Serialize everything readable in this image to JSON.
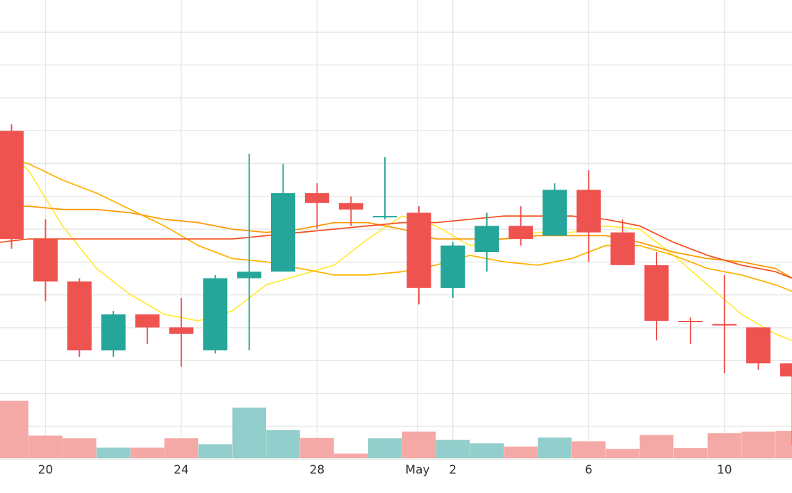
{
  "chart_data": {
    "type": "candlestick",
    "x_ticks": [
      {
        "label": "20",
        "day": 20
      },
      {
        "label": "24",
        "day": 24
      },
      {
        "label": "28",
        "day": 28
      },
      {
        "label": "May",
        "day": 30.96
      },
      {
        "label": "2",
        "day": 32
      },
      {
        "label": "6",
        "day": 36
      },
      {
        "label": "10",
        "day": 40
      }
    ],
    "x_range": [
      18.66,
      41.99
    ],
    "grid": true,
    "colors": {
      "up": "#26a69a",
      "down": "#ef5350",
      "up_volume": "#92cecb",
      "down_volume": "#f5a9a6",
      "grid": "#e6e6e6",
      "ma_lines": [
        "#ffeb3b",
        "#ffb300",
        "#ff9800",
        "#f4511e"
      ]
    },
    "candles": [
      {
        "day": 19,
        "open": 435,
        "high": 437,
        "low": 399,
        "close": 402,
        "dir": "down"
      },
      {
        "day": 20,
        "open": 402,
        "high": 408,
        "low": 383,
        "close": 389,
        "dir": "down"
      },
      {
        "day": 21,
        "open": 389,
        "high": 390,
        "low": 366,
        "close": 368,
        "dir": "down"
      },
      {
        "day": 22,
        "open": 368,
        "high": 380,
        "low": 366,
        "close": 379,
        "dir": "up"
      },
      {
        "day": 23,
        "open": 379,
        "high": 379,
        "low": 370,
        "close": 375,
        "dir": "down"
      },
      {
        "day": 24,
        "open": 375,
        "high": 384,
        "low": 363,
        "close": 373,
        "dir": "down"
      },
      {
        "day": 25,
        "open": 368,
        "high": 391,
        "low": 367,
        "close": 390,
        "dir": "up"
      },
      {
        "day": 26,
        "open": 390,
        "high": 428,
        "low": 368,
        "close": 392,
        "dir": "up"
      },
      {
        "day": 27,
        "open": 392,
        "high": 425,
        "low": 392,
        "close": 416,
        "dir": "up"
      },
      {
        "day": 28,
        "open": 416,
        "high": 419,
        "low": 405,
        "close": 413,
        "dir": "down"
      },
      {
        "day": 29,
        "open": 413,
        "high": 415,
        "low": 406,
        "close": 411,
        "dir": "down"
      },
      {
        "day": 30,
        "open": 409,
        "high": 427,
        "low": 408,
        "close": 409,
        "dir": "up"
      },
      {
        "day": 31,
        "open": 410,
        "high": 412,
        "low": 382,
        "close": 387,
        "dir": "down"
      },
      {
        "day": 32,
        "open": 387,
        "high": 401,
        "low": 384,
        "close": 400,
        "dir": "up"
      },
      {
        "day": 33,
        "open": 398,
        "high": 410,
        "low": 392,
        "close": 406,
        "dir": "up"
      },
      {
        "day": 34,
        "open": 406,
        "high": 412,
        "low": 400,
        "close": 402,
        "dir": "down"
      },
      {
        "day": 35,
        "open": 403,
        "high": 419,
        "low": 403,
        "close": 417,
        "dir": "up"
      },
      {
        "day": 36,
        "open": 417,
        "high": 423,
        "low": 395,
        "close": 404,
        "dir": "down"
      },
      {
        "day": 37,
        "open": 404,
        "high": 408,
        "low": 394,
        "close": 394,
        "dir": "down"
      },
      {
        "day": 38,
        "open": 394,
        "high": 398,
        "low": 371,
        "close": 377,
        "dir": "down"
      },
      {
        "day": 39,
        "open": 377,
        "high": 378,
        "low": 370,
        "close": 377,
        "dir": "down"
      },
      {
        "day": 40,
        "open": 376,
        "high": 391,
        "low": 361,
        "close": 376,
        "dir": "down"
      },
      {
        "day": 41,
        "open": 375,
        "high": 375,
        "low": 362,
        "close": 364,
        "dir": "down"
      },
      {
        "day": 42,
        "open": 364,
        "high": 364,
        "low": 339,
        "close": 360,
        "dir": "down"
      }
    ],
    "volume": [
      {
        "day": 19,
        "value": 17.3,
        "dir": "down"
      },
      {
        "day": 20,
        "value": 6.8,
        "dir": "down"
      },
      {
        "day": 21,
        "value": 6.0,
        "dir": "down"
      },
      {
        "day": 22,
        "value": 3.2,
        "dir": "up"
      },
      {
        "day": 23,
        "value": 3.2,
        "dir": "down"
      },
      {
        "day": 24,
        "value": 6.0,
        "dir": "down"
      },
      {
        "day": 25,
        "value": 4.2,
        "dir": "up"
      },
      {
        "day": 26,
        "value": 15.2,
        "dir": "up"
      },
      {
        "day": 27,
        "value": 8.5,
        "dir": "up"
      },
      {
        "day": 28,
        "value": 6.1,
        "dir": "down"
      },
      {
        "day": 29,
        "value": 1.4,
        "dir": "down"
      },
      {
        "day": 30,
        "value": 6.0,
        "dir": "up"
      },
      {
        "day": 31,
        "value": 8.0,
        "dir": "down"
      },
      {
        "day": 32,
        "value": 5.5,
        "dir": "up"
      },
      {
        "day": 33,
        "value": 4.5,
        "dir": "up"
      },
      {
        "day": 34,
        "value": 3.5,
        "dir": "down"
      },
      {
        "day": 35,
        "value": 6.2,
        "dir": "up"
      },
      {
        "day": 36,
        "value": 5.1,
        "dir": "down"
      },
      {
        "day": 37,
        "value": 2.8,
        "dir": "down"
      },
      {
        "day": 38,
        "value": 7.0,
        "dir": "down"
      },
      {
        "day": 39,
        "value": 3.1,
        "dir": "down"
      },
      {
        "day": 40,
        "value": 7.5,
        "dir": "down"
      },
      {
        "day": 41,
        "value": 8.0,
        "dir": "down"
      },
      {
        "day": 42,
        "value": 8.2,
        "dir": "down"
      }
    ],
    "moving_averages": [
      {
        "color": "#ffeb3b",
        "points": [
          [
            18.66,
            430
          ],
          [
            19.5,
            423
          ],
          [
            20.5,
            406
          ],
          [
            21.5,
            393
          ],
          [
            22.5,
            385
          ],
          [
            23.5,
            379
          ],
          [
            24.5,
            377
          ],
          [
            25.5,
            380
          ],
          [
            26.5,
            388
          ],
          [
            27.5,
            391
          ],
          [
            28.5,
            394
          ],
          [
            29.5,
            402
          ],
          [
            30.5,
            409
          ],
          [
            31.5,
            406
          ],
          [
            32.5,
            400
          ],
          [
            33.5,
            402
          ],
          [
            34.5,
            404
          ],
          [
            35.5,
            404
          ],
          [
            36.5,
            406
          ],
          [
            37.5,
            405
          ],
          [
            38.5,
            397
          ],
          [
            39.5,
            388
          ],
          [
            40.5,
            379
          ],
          [
            41.5,
            373
          ],
          [
            41.99,
            371
          ]
        ]
      },
      {
        "color": "#ffb300",
        "points": [
          [
            18.66,
            427
          ],
          [
            19.5,
            425
          ],
          [
            20.5,
            420
          ],
          [
            21.5,
            416
          ],
          [
            22.5,
            411
          ],
          [
            23.5,
            406
          ],
          [
            24.5,
            400
          ],
          [
            25.5,
            396
          ],
          [
            26.5,
            395
          ],
          [
            27.5,
            393
          ],
          [
            28.5,
            391
          ],
          [
            29.5,
            391
          ],
          [
            30.5,
            392
          ],
          [
            31.5,
            394
          ],
          [
            32.5,
            397
          ],
          [
            33.5,
            395
          ],
          [
            34.5,
            394
          ],
          [
            35.5,
            396
          ],
          [
            36.5,
            400
          ],
          [
            37.5,
            400
          ],
          [
            38.5,
            397
          ],
          [
            39.5,
            393
          ],
          [
            40.5,
            391
          ],
          [
            41.5,
            388
          ],
          [
            41.99,
            386
          ]
        ]
      },
      {
        "color": "#ff9800",
        "points": [
          [
            18.66,
            412
          ],
          [
            19.5,
            412
          ],
          [
            20.5,
            411
          ],
          [
            21.5,
            411
          ],
          [
            22.5,
            410
          ],
          [
            23.5,
            408
          ],
          [
            24.5,
            407
          ],
          [
            25.5,
            405
          ],
          [
            26.5,
            404
          ],
          [
            27.5,
            405
          ],
          [
            28.5,
            407
          ],
          [
            29.5,
            407
          ],
          [
            30.5,
            405
          ],
          [
            31.5,
            402
          ],
          [
            32.5,
            402
          ],
          [
            33.5,
            402
          ],
          [
            34.5,
            403
          ],
          [
            35.5,
            403
          ],
          [
            36.5,
            403
          ],
          [
            37.5,
            401
          ],
          [
            38.5,
            398
          ],
          [
            39.5,
            396
          ],
          [
            40.5,
            395
          ],
          [
            41.5,
            393
          ],
          [
            41.99,
            390
          ]
        ]
      },
      {
        "color": "#f4511e",
        "points": [
          [
            18.66,
            401
          ],
          [
            19.5,
            402
          ],
          [
            20.5,
            402
          ],
          [
            21.5,
            402
          ],
          [
            22.5,
            402
          ],
          [
            23.5,
            402
          ],
          [
            24.5,
            402
          ],
          [
            25.5,
            402
          ],
          [
            26.5,
            403
          ],
          [
            27.5,
            404
          ],
          [
            28.5,
            405
          ],
          [
            29.5,
            406
          ],
          [
            30.5,
            407
          ],
          [
            31.5,
            407
          ],
          [
            32.5,
            408
          ],
          [
            33.5,
            409
          ],
          [
            34.5,
            409
          ],
          [
            35.5,
            409
          ],
          [
            36.5,
            408
          ],
          [
            37.5,
            406
          ],
          [
            38.5,
            401
          ],
          [
            39.5,
            397
          ],
          [
            40.5,
            394
          ],
          [
            41.5,
            392
          ],
          [
            41.99,
            390
          ]
        ]
      }
    ]
  }
}
